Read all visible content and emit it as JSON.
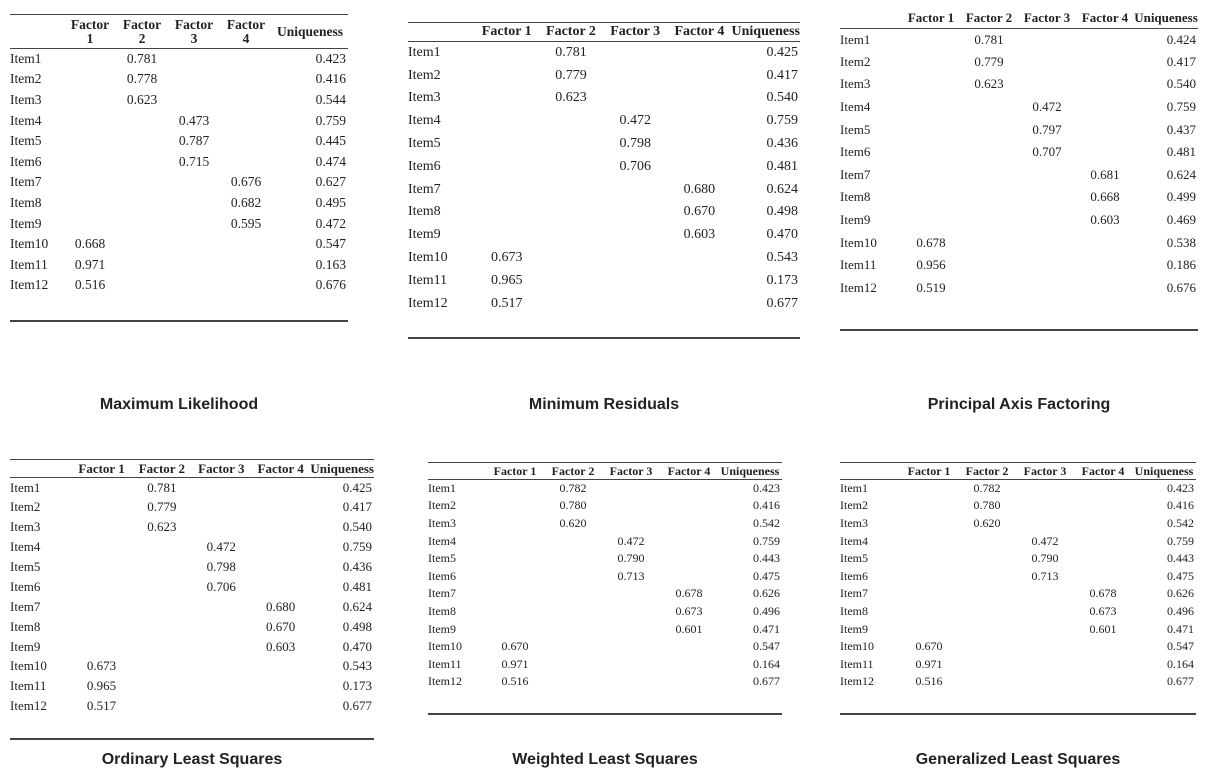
{
  "tables": [
    {
      "title": "Maximum Likelihood",
      "headers": [
        "",
        "Factor 1",
        "Factor 2",
        "Factor 3",
        "Factor 4",
        "Uniqueness"
      ],
      "rows": [
        [
          "Item1",
          "",
          "0.781",
          "",
          "",
          "0.423"
        ],
        [
          "Item2",
          "",
          "0.778",
          "",
          "",
          "0.416"
        ],
        [
          "Item3",
          "",
          "0.623",
          "",
          "",
          "0.544"
        ],
        [
          "Item4",
          "",
          "",
          "0.473",
          "",
          "0.759"
        ],
        [
          "Item5",
          "",
          "",
          "0.787",
          "",
          "0.445"
        ],
        [
          "Item6",
          "",
          "",
          "0.715",
          "",
          "0.474"
        ],
        [
          "Item7",
          "",
          "",
          "",
          "0.676",
          "0.627"
        ],
        [
          "Item8",
          "",
          "",
          "",
          "0.682",
          "0.495"
        ],
        [
          "Item9",
          "",
          "",
          "",
          "0.595",
          "0.472"
        ],
        [
          "Item10",
          "0.668",
          "",
          "",
          "",
          "0.547"
        ],
        [
          "Item11",
          "0.971",
          "",
          "",
          "",
          "0.163"
        ],
        [
          "Item12",
          "0.516",
          "",
          "",
          "",
          "0.676"
        ]
      ]
    },
    {
      "title": "Minimum Residuals",
      "headers": [
        "",
        "Factor 1",
        "Factor 2",
        "Factor 3",
        "Factor 4",
        "Uniqueness"
      ],
      "rows": [
        [
          "Item1",
          "",
          "0.781",
          "",
          "",
          "0.425"
        ],
        [
          "Item2",
          "",
          "0.779",
          "",
          "",
          "0.417"
        ],
        [
          "Item3",
          "",
          "0.623",
          "",
          "",
          "0.540"
        ],
        [
          "Item4",
          "",
          "",
          "0.472",
          "",
          "0.759"
        ],
        [
          "Item5",
          "",
          "",
          "0.798",
          "",
          "0.436"
        ],
        [
          "Item6",
          "",
          "",
          "0.706",
          "",
          "0.481"
        ],
        [
          "Item7",
          "",
          "",
          "",
          "0.680",
          "0.624"
        ],
        [
          "Item8",
          "",
          "",
          "",
          "0.670",
          "0.498"
        ],
        [
          "Item9",
          "",
          "",
          "",
          "0.603",
          "0.470"
        ],
        [
          "Item10",
          "0.673",
          "",
          "",
          "",
          "0.543"
        ],
        [
          "Item11",
          "0.965",
          "",
          "",
          "",
          "0.173"
        ],
        [
          "Item12",
          "0.517",
          "",
          "",
          "",
          "0.677"
        ]
      ]
    },
    {
      "title": "Principal Axis Factoring",
      "headers": [
        "",
        "Factor 1",
        "Factor 2",
        "Factor 3",
        "Factor 4",
        "Uniqueness"
      ],
      "rows": [
        [
          "Item1",
          "",
          "0.781",
          "",
          "",
          "0.424"
        ],
        [
          "Item2",
          "",
          "0.779",
          "",
          "",
          "0.417"
        ],
        [
          "Item3",
          "",
          "0.623",
          "",
          "",
          "0.540"
        ],
        [
          "Item4",
          "",
          "",
          "0.472",
          "",
          "0.759"
        ],
        [
          "Item5",
          "",
          "",
          "0.797",
          "",
          "0.437"
        ],
        [
          "Item6",
          "",
          "",
          "0.707",
          "",
          "0.481"
        ],
        [
          "Item7",
          "",
          "",
          "",
          "0.681",
          "0.624"
        ],
        [
          "Item8",
          "",
          "",
          "",
          "0.668",
          "0.499"
        ],
        [
          "Item9",
          "",
          "",
          "",
          "0.603",
          "0.469"
        ],
        [
          "Item10",
          "0.678",
          "",
          "",
          "",
          "0.538"
        ],
        [
          "Item11",
          "0.956",
          "",
          "",
          "",
          "0.186"
        ],
        [
          "Item12",
          "0.519",
          "",
          "",
          "",
          "0.676"
        ]
      ]
    },
    {
      "title": "Ordinary Least Squares",
      "headers": [
        "",
        "Factor 1",
        "Factor 2",
        "Factor 3",
        "Factor 4",
        "Uniqueness"
      ],
      "rows": [
        [
          "Item1",
          "",
          "0.781",
          "",
          "",
          "0.425"
        ],
        [
          "Item2",
          "",
          "0.779",
          "",
          "",
          "0.417"
        ],
        [
          "Item3",
          "",
          "0.623",
          "",
          "",
          "0.540"
        ],
        [
          "Item4",
          "",
          "",
          "0.472",
          "",
          "0.759"
        ],
        [
          "Item5",
          "",
          "",
          "0.798",
          "",
          "0.436"
        ],
        [
          "Item6",
          "",
          "",
          "0.706",
          "",
          "0.481"
        ],
        [
          "Item7",
          "",
          "",
          "",
          "0.680",
          "0.624"
        ],
        [
          "Item8",
          "",
          "",
          "",
          "0.670",
          "0.498"
        ],
        [
          "Item9",
          "",
          "",
          "",
          "0.603",
          "0.470"
        ],
        [
          "Item10",
          "0.673",
          "",
          "",
          "",
          "0.543"
        ],
        [
          "Item11",
          "0.965",
          "",
          "",
          "",
          "0.173"
        ],
        [
          "Item12",
          "0.517",
          "",
          "",
          "",
          "0.677"
        ]
      ]
    },
    {
      "title": "Weighted Least Squares",
      "headers": [
        "",
        "Factor 1",
        "Factor 2",
        "Factor 3",
        "Factor 4",
        "Uniqueness"
      ],
      "rows": [
        [
          "Item1",
          "",
          "0.782",
          "",
          "",
          "0.423"
        ],
        [
          "Item2",
          "",
          "0.780",
          "",
          "",
          "0.416"
        ],
        [
          "Item3",
          "",
          "0.620",
          "",
          "",
          "0.542"
        ],
        [
          "Item4",
          "",
          "",
          "0.472",
          "",
          "0.759"
        ],
        [
          "Item5",
          "",
          "",
          "0.790",
          "",
          "0.443"
        ],
        [
          "Item6",
          "",
          "",
          "0.713",
          "",
          "0.475"
        ],
        [
          "Item7",
          "",
          "",
          "",
          "0.678",
          "0.626"
        ],
        [
          "Item8",
          "",
          "",
          "",
          "0.673",
          "0.496"
        ],
        [
          "Item9",
          "",
          "",
          "",
          "0.601",
          "0.471"
        ],
        [
          "Item10",
          "0.670",
          "",
          "",
          "",
          "0.547"
        ],
        [
          "Item11",
          "0.971",
          "",
          "",
          "",
          "0.164"
        ],
        [
          "Item12",
          "0.516",
          "",
          "",
          "",
          "0.677"
        ]
      ]
    },
    {
      "title": "Generalized Least Squares",
      "headers": [
        "",
        "Factor 1",
        "Factor 2",
        "Factor 3",
        "Factor 4",
        "Uniqueness"
      ],
      "rows": [
        [
          "Item1",
          "",
          "0.782",
          "",
          "",
          "0.423"
        ],
        [
          "Item2",
          "",
          "0.780",
          "",
          "",
          "0.416"
        ],
        [
          "Item3",
          "",
          "0.620",
          "",
          "",
          "0.542"
        ],
        [
          "Item4",
          "",
          "",
          "0.472",
          "",
          "0.759"
        ],
        [
          "Item5",
          "",
          "",
          "0.790",
          "",
          "0.443"
        ],
        [
          "Item6",
          "",
          "",
          "0.713",
          "",
          "0.475"
        ],
        [
          "Item7",
          "",
          "",
          "",
          "0.678",
          "0.626"
        ],
        [
          "Item8",
          "",
          "",
          "",
          "0.673",
          "0.496"
        ],
        [
          "Item9",
          "",
          "",
          "",
          "0.601",
          "0.471"
        ],
        [
          "Item10",
          "0.670",
          "",
          "",
          "",
          "0.547"
        ],
        [
          "Item11",
          "0.971",
          "",
          "",
          "",
          "0.164"
        ],
        [
          "Item12",
          "0.516",
          "",
          "",
          "",
          "0.677"
        ]
      ]
    }
  ]
}
